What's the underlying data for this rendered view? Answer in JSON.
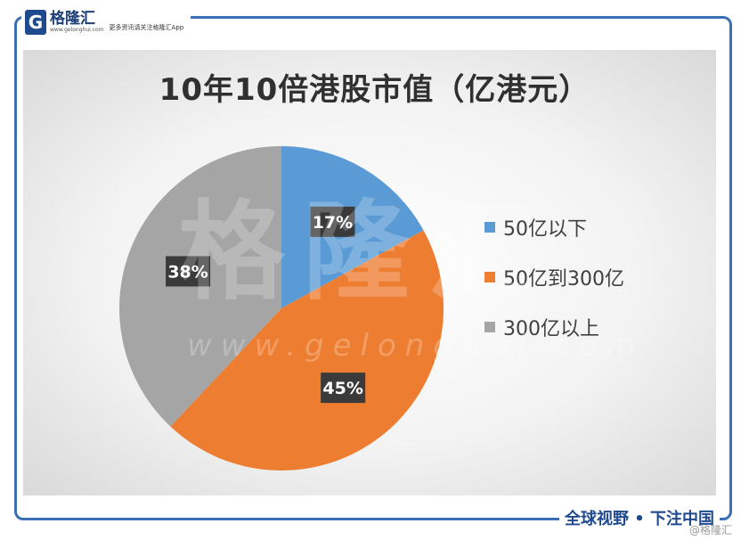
{
  "brand": {
    "logo_glyph": "G",
    "name": "格隆汇",
    "url": "www.gelonghui.com",
    "slogan": "更多资讯请关注格隆汇App"
  },
  "watermark": {
    "text": "格隆汇",
    "url": "www.gelonghui.com"
  },
  "footer": {
    "text": "全球视野 • 下注中国",
    "corner": "@格隆汇"
  },
  "colors": {
    "frame": "#3b6fb6",
    "slice_under_50": "#5b9bd5",
    "slice_50_to_300": "#ed7d31",
    "slice_over_300": "#a5a5a5"
  },
  "chart_data": {
    "type": "pie",
    "title": "10年10倍港股市值（亿港元）",
    "categories": [
      "50亿以下",
      "50亿到300亿",
      "300亿以上"
    ],
    "values": [
      17,
      45,
      38
    ],
    "labels": [
      "17%",
      "45%",
      "38%"
    ],
    "colors": [
      "#5b9bd5",
      "#ed7d31",
      "#a5a5a5"
    ],
    "start_angle": "12 o'clock",
    "direction": "clockwise",
    "legend_position": "right"
  }
}
